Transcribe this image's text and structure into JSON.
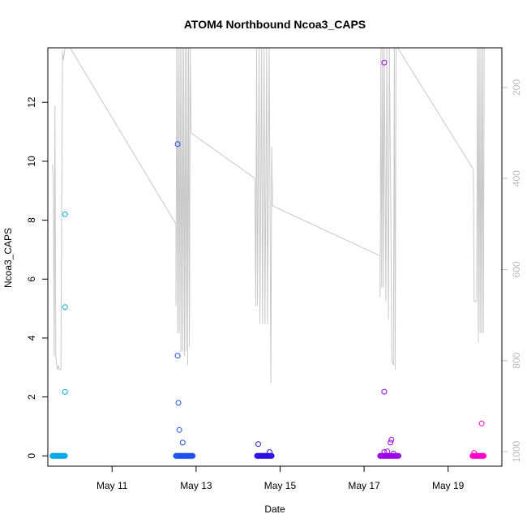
{
  "chart_data": {
    "type": "scatter",
    "title": "ATOM4 Northbound Ncoa3_CAPS",
    "xlabel": "Date",
    "ylabel": "Ncoa3_CAPS",
    "x_ticks": [
      {
        "label": "May 11",
        "day": 11
      },
      {
        "label": "May 13",
        "day": 13
      },
      {
        "label": "May 15",
        "day": 15
      },
      {
        "label": "May 17",
        "day": 17
      },
      {
        "label": "May 19",
        "day": 19
      }
    ],
    "xlim": [
      "May 9.47",
      "May 20.28"
    ],
    "xlim_days": [
      9.47,
      20.28
    ],
    "ylim": [
      -0.35,
      13.85
    ],
    "y_ticks": [
      0,
      2,
      4,
      6,
      8,
      10,
      12
    ],
    "secondary_axis": {
      "ylim_inverted": [
        1032,
        113
      ],
      "ticks": [
        200,
        400,
        600,
        800,
        1000
      ],
      "color": "#c0c0c0"
    },
    "point_colors": [
      "#00a8e8",
      "#1c50f0",
      "#2a10e6",
      "#9a08e6",
      "#ff00c8"
    ],
    "clusters": [
      {
        "name": "",
        "color": "#00a8e8",
        "day_start": 9.58,
        "day_end": 9.88,
        "outliers": [
          [
            9.88,
            8.2
          ],
          [
            9.88,
            5.05
          ],
          [
            9.88,
            2.17
          ]
        ]
      },
      {
        "name": "",
        "color": "#1c50f0",
        "day_start": 12.52,
        "day_end": 12.92,
        "outliers": [
          [
            12.56,
            10.58
          ],
          [
            12.56,
            3.4
          ],
          [
            12.58,
            1.8
          ],
          [
            12.6,
            0.88
          ],
          [
            12.68,
            0.45
          ]
        ]
      },
      {
        "name": "",
        "color": "#2a10e6",
        "day_start": 14.45,
        "day_end": 14.8,
        "outliers": [
          [
            14.48,
            0.4
          ],
          [
            14.75,
            0.13
          ]
        ]
      },
      {
        "name": "",
        "color": "#9a08e6",
        "day_start": 17.38,
        "day_end": 17.82,
        "outliers": [
          [
            17.48,
            13.35
          ],
          [
            17.48,
            2.18
          ],
          [
            17.65,
            0.55
          ],
          [
            17.63,
            0.45
          ],
          [
            17.48,
            0.13
          ],
          [
            17.55,
            0.15
          ],
          [
            17.7,
            0.08
          ]
        ]
      },
      {
        "name": "",
        "color": "#ff00c8",
        "day_start": 19.58,
        "day_end": 19.85,
        "outliers": [
          [
            19.8,
            1.1
          ],
          [
            19.62,
            0.1
          ]
        ]
      }
    ],
    "depth_trace": [
      [
        9.58,
        370
      ],
      [
        9.6,
        400
      ],
      [
        9.62,
        790
      ],
      [
        9.64,
        240
      ],
      [
        9.66,
        790
      ],
      [
        9.68,
        810
      ],
      [
        9.7,
        820
      ],
      [
        9.72,
        810
      ],
      [
        9.74,
        820
      ],
      [
        9.78,
        820
      ],
      [
        9.82,
        120
      ],
      [
        9.84,
        140
      ],
      [
        9.88,
        113
      ],
      [
        10.0,
        113
      ],
      [
        12.52,
        500
      ],
      [
        12.52,
        680
      ],
      [
        12.54,
        113
      ],
      [
        12.56,
        740
      ],
      [
        12.58,
        113
      ],
      [
        12.6,
        740
      ],
      [
        12.62,
        113
      ],
      [
        12.64,
        780
      ],
      [
        12.66,
        113
      ],
      [
        12.68,
        780
      ],
      [
        12.7,
        113
      ],
      [
        12.72,
        790
      ],
      [
        12.74,
        113
      ],
      [
        12.76,
        780
      ],
      [
        12.78,
        113
      ],
      [
        12.8,
        810
      ],
      [
        12.82,
        113
      ],
      [
        12.84,
        770
      ],
      [
        12.86,
        113
      ],
      [
        12.88,
        300
      ],
      [
        14.4,
        400
      ],
      [
        14.42,
        680
      ],
      [
        14.44,
        113
      ],
      [
        14.46,
        680
      ],
      [
        14.5,
        113
      ],
      [
        14.52,
        720
      ],
      [
        14.56,
        113
      ],
      [
        14.58,
        720
      ],
      [
        14.62,
        113
      ],
      [
        14.64,
        720
      ],
      [
        14.68,
        113
      ],
      [
        14.7,
        720
      ],
      [
        14.74,
        113
      ],
      [
        14.78,
        850
      ],
      [
        14.8,
        330
      ],
      [
        14.82,
        460
      ],
      [
        17.38,
        570
      ],
      [
        17.38,
        660
      ],
      [
        17.4,
        113
      ],
      [
        17.42,
        640
      ],
      [
        17.44,
        113
      ],
      [
        17.46,
        640
      ],
      [
        17.48,
        113
      ],
      [
        17.52,
        670
      ],
      [
        17.54,
        113
      ],
      [
        17.58,
        710
      ],
      [
        17.6,
        113
      ],
      [
        17.64,
        510
      ],
      [
        17.66,
        800
      ],
      [
        17.7,
        810
      ],
      [
        17.72,
        113
      ],
      [
        17.74,
        820
      ],
      [
        17.76,
        113
      ],
      [
        17.8,
        113
      ],
      [
        19.6,
        380
      ],
      [
        19.62,
        670
      ],
      [
        19.68,
        670
      ],
      [
        19.7,
        113
      ],
      [
        19.72,
        760
      ],
      [
        19.74,
        113
      ],
      [
        19.76,
        740
      ],
      [
        19.78,
        113
      ],
      [
        19.8,
        740
      ],
      [
        19.82,
        113
      ],
      [
        19.84,
        740
      ],
      [
        19.86,
        113
      ]
    ]
  }
}
